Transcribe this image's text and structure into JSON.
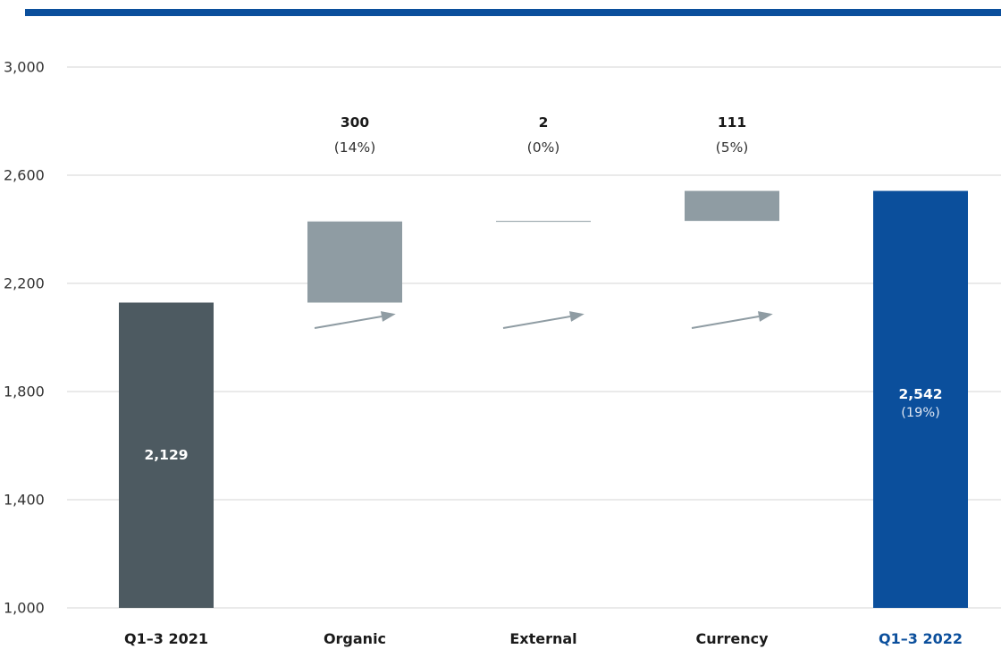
{
  "colors": {
    "header_bar": "#0b4f9c",
    "start_bar": "#4d5a61",
    "delta_bar": "#8f9ca3",
    "end_bar": "#0b4f9c",
    "arrow": "#8f9ca3",
    "grid": "#d6d6d6",
    "highlight_label": "#0b4f9c"
  },
  "chart_data": {
    "type": "bar",
    "subtype": "waterfall",
    "ylim": [
      1000,
      3000
    ],
    "y_ticks": [
      1000,
      1400,
      1800,
      2200,
      2600,
      3000
    ],
    "y_tick_labels": [
      "1,000",
      "1,400",
      "1,800",
      "2,200",
      "2,600",
      "3,000"
    ],
    "grid": true,
    "categories": [
      "Q1–3 2021",
      "Organic",
      "External",
      "Currency",
      "Q1–3 2022"
    ],
    "bars": [
      {
        "category": "Q1–3 2021",
        "kind": "total",
        "start": 1000,
        "end": 2129,
        "label": "2,129",
        "pct": ""
      },
      {
        "category": "Organic",
        "kind": "delta",
        "start": 2129,
        "end": 2429,
        "label": "300",
        "pct": "(14%)"
      },
      {
        "category": "External",
        "kind": "delta",
        "start": 2429,
        "end": 2431,
        "label": "2",
        "pct": "(0%)"
      },
      {
        "category": "Currency",
        "kind": "delta",
        "start": 2431,
        "end": 2542,
        "label": "111",
        "pct": "(5%)"
      },
      {
        "category": "Q1–3 2022",
        "kind": "total",
        "start": 1000,
        "end": 2542,
        "label": "2,542",
        "pct": "(19%)"
      }
    ]
  }
}
